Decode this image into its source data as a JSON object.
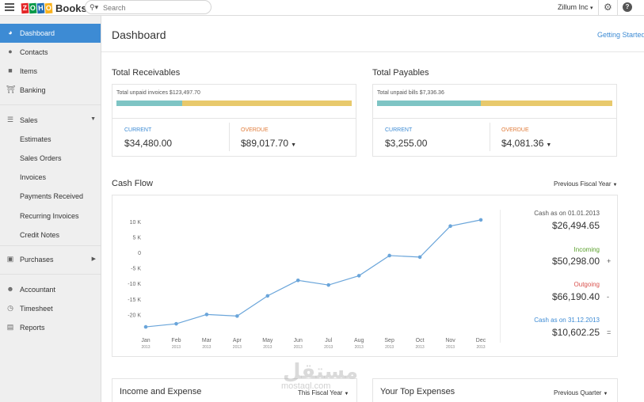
{
  "topbar": {
    "brand_letters": [
      "Z",
      "O",
      "H",
      "O"
    ],
    "brand_colors": [
      "#e42527",
      "#089949",
      "#226db4",
      "#f9b21d"
    ],
    "brand_name": "Books",
    "search_placeholder": "Search",
    "org_name": "Zillum Inc",
    "help_label": "?"
  },
  "sidebar": {
    "items": [
      {
        "label": "Dashboard",
        "icon": "dashboard-icon",
        "active": true
      },
      {
        "label": "Contacts",
        "icon": "contacts-icon"
      },
      {
        "label": "Items",
        "icon": "items-icon"
      },
      {
        "label": "Banking",
        "icon": "bank-icon"
      },
      {
        "label": "Sales",
        "icon": "sales-icon",
        "expanded": true
      },
      {
        "label": "Purchases",
        "icon": "purchases-icon"
      },
      {
        "label": "Accountant",
        "icon": "accountant-icon"
      },
      {
        "label": "Timesheet",
        "icon": "timesheet-icon"
      },
      {
        "label": "Reports",
        "icon": "reports-icon"
      }
    ],
    "sales_sub": [
      "Estimates",
      "Sales Orders",
      "Invoices",
      "Payments Received",
      "Recurring Invoices",
      "Credit Notes"
    ]
  },
  "header": {
    "title": "Dashboard",
    "getting_started": "Getting Started"
  },
  "receivables": {
    "title": "Total Receivables",
    "unpaid_label": "Total unpaid invoices $123,497.70",
    "current_label": "CURRENT",
    "current_value": "$34,480.00",
    "overdue_label": "OVERDUE",
    "overdue_value": "$89,017.70",
    "current_fraction": 0.28
  },
  "payables": {
    "title": "Total Payables",
    "unpaid_label": "Total unpaid bills $7,336.36",
    "current_label": "CURRENT",
    "current_value": "$3,255.00",
    "overdue_label": "OVERDUE",
    "overdue_value": "$4,081.36",
    "current_fraction": 0.44
  },
  "cashflow": {
    "title": "Cash Flow",
    "period": "Previous Fiscal Year",
    "opening_label": "Cash as on 01.01.2013",
    "opening_value": "$26,494.65",
    "incoming_label": "Incoming",
    "incoming_value": "$50,298.00",
    "incoming_op": "+",
    "outgoing_label": "Outgoing",
    "outgoing_value": "$66,190.40",
    "outgoing_op": "-",
    "closing_label": "Cash as on 31.12.2013",
    "closing_value": "$10,602.25",
    "closing_op": "=",
    "colors": {
      "incoming": "#5aa02c",
      "outgoing": "#d9534f",
      "closing": "#3d8bd4"
    }
  },
  "income_expense": {
    "title": "Income and Expense",
    "period": "This Fiscal Year"
  },
  "top_expenses": {
    "title": "Your Top Expenses",
    "period": "Previous Quarter"
  },
  "watermark": {
    "text": "مستقل",
    "sub": "mostaql.com"
  },
  "chart_data": {
    "type": "line",
    "categories": [
      "Jan 2013",
      "Feb 2013",
      "Mar 2013",
      "Apr 2013",
      "May 2013",
      "Jun 2013",
      "Jul 2013",
      "Aug 2013",
      "Sep 2013",
      "Oct 2013",
      "Nov 2013",
      "Dec 2013"
    ],
    "month_labels": [
      "Jan",
      "Feb",
      "Mar",
      "Apr",
      "May",
      "Jun",
      "Jul",
      "Aug",
      "Sep",
      "Oct",
      "Nov",
      "Dec"
    ],
    "year_label": "2013",
    "values": [
      -24000,
      -23000,
      -20000,
      -20500,
      -14000,
      -9000,
      -10500,
      -7500,
      -1000,
      -1500,
      8500,
      10500
    ],
    "yticks": [
      10000,
      5000,
      0,
      -5000,
      -10000,
      -15000,
      -20000
    ],
    "ytick_labels": [
      "10 K",
      "5 K",
      "0",
      "-5 K",
      "-10 K",
      "-15 K",
      "-20 K"
    ],
    "ylim": [
      -25000,
      12000
    ],
    "grid": false,
    "color": "#6aa5da"
  }
}
